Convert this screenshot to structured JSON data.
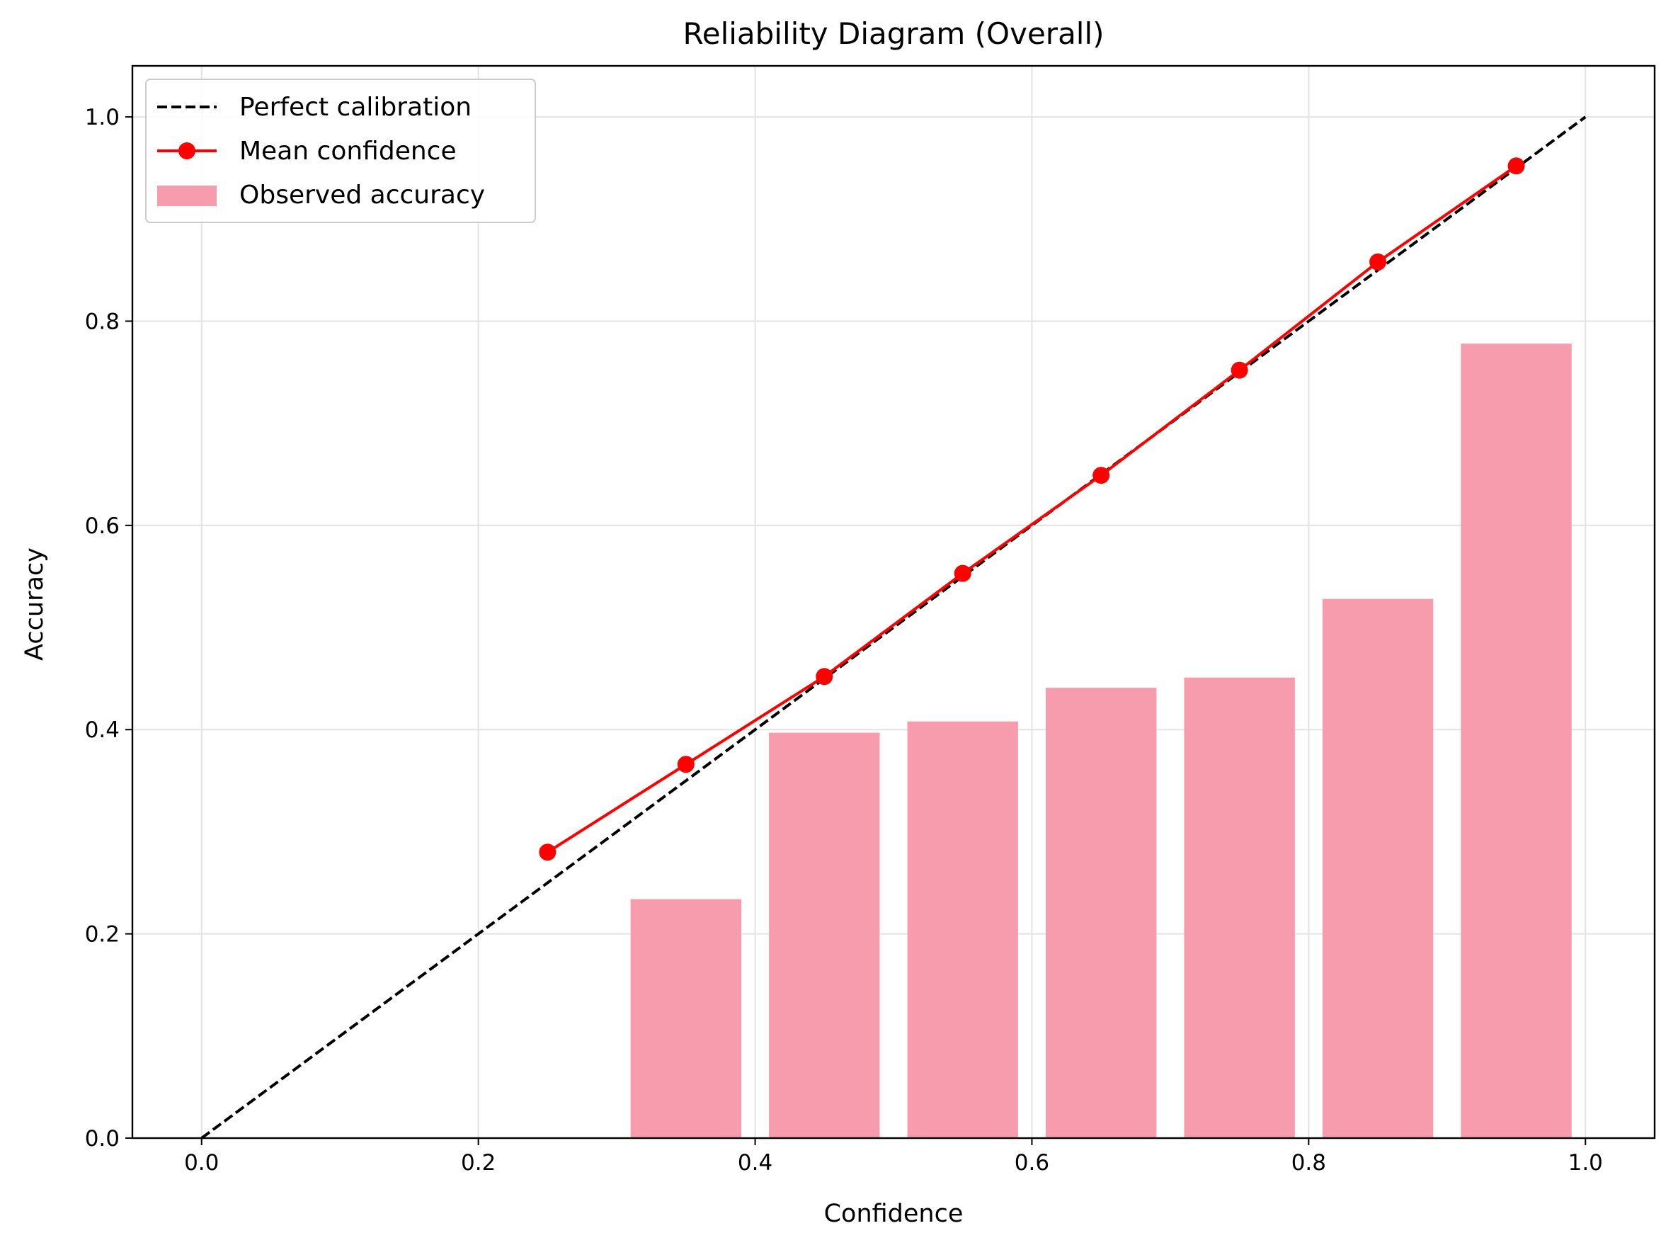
{
  "chart_data": {
    "type": "bar",
    "title": "Reliability Diagram (Overall)",
    "xlabel": "Confidence",
    "ylabel": "Accuracy",
    "xlim": [
      -0.05,
      1.05
    ],
    "ylim": [
      0.0,
      1.05
    ],
    "xticks": [
      "0.0",
      "0.2",
      "0.4",
      "0.6",
      "0.8",
      "1.0"
    ],
    "yticks": [
      "0.0",
      "0.2",
      "0.4",
      "0.6",
      "0.8",
      "1.0"
    ],
    "grid": true,
    "legend_position": "top-left",
    "bar_width": 0.08,
    "series": [
      {
        "name": "Perfect calibration",
        "kind": "line",
        "style": "dashed",
        "color": "#000000",
        "x": [
          0.0,
          1.0
        ],
        "y": [
          0.0,
          1.0
        ]
      },
      {
        "name": "Mean confidence",
        "kind": "line-markers",
        "color": "#ff0000",
        "x": [
          0.25,
          0.35,
          0.45,
          0.55,
          0.65,
          0.75,
          0.85,
          0.95
        ],
        "y": [
          0.28,
          0.366,
          0.452,
          0.553,
          0.649,
          0.752,
          0.858,
          0.952
        ]
      },
      {
        "name": "Observed accuracy",
        "kind": "bar",
        "color": "#f79cad",
        "x": [
          0.35,
          0.45,
          0.55,
          0.65,
          0.75,
          0.85,
          0.95
        ],
        "y": [
          0.234,
          0.397,
          0.408,
          0.441,
          0.451,
          0.528,
          0.778
        ]
      }
    ]
  }
}
